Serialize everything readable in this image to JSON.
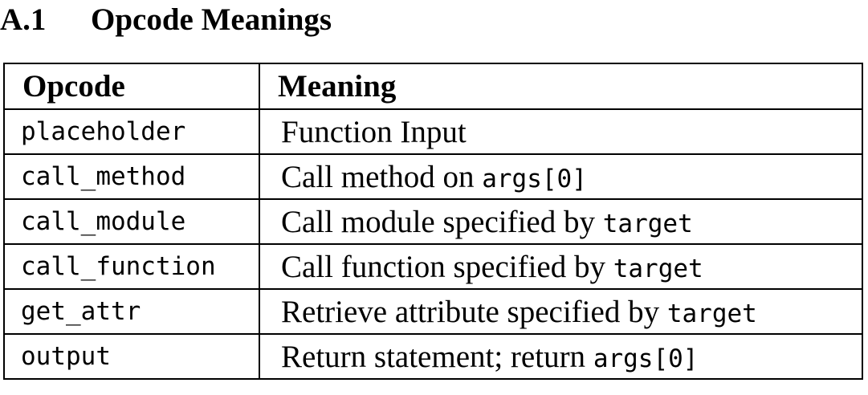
{
  "section": {
    "number": "A.1",
    "title": "Opcode Meanings"
  },
  "table": {
    "headers": {
      "opcode": "Opcode",
      "meaning": "Meaning"
    },
    "rows": [
      {
        "opcode": "placeholder",
        "meaning_text": "Function Input",
        "meaning_code": ""
      },
      {
        "opcode": "call_method",
        "meaning_text": "Call method on ",
        "meaning_code": "args[0]"
      },
      {
        "opcode": "call_module",
        "meaning_text": "Call module specified by ",
        "meaning_code": "target"
      },
      {
        "opcode": "call_function",
        "meaning_text": "Call function specified by ",
        "meaning_code": "target"
      },
      {
        "opcode": "get_attr",
        "meaning_text": "Retrieve attribute specified by ",
        "meaning_code": "target"
      },
      {
        "opcode": "output",
        "meaning_text": "Return statement; return ",
        "meaning_code": "args[0]"
      }
    ]
  }
}
